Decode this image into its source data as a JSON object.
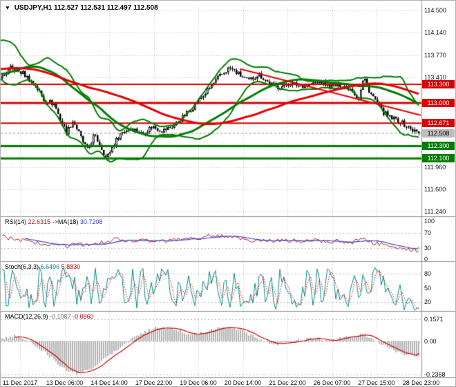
{
  "header": {
    "dropdown_icon": "▼",
    "symbol": "USDJPY,H1",
    "quote": "112.527 112.531 112.497 112.508"
  },
  "colors": {
    "up_candle": "#ffffff",
    "down_candle": "#000000",
    "candle_border": "#000000",
    "grid": "#c9c9c9",
    "panel_level": "#b4b4b4",
    "separator": "#8f8f8f",
    "bollinger": "#007d00",
    "ma_green": "#007d00",
    "ma_red": "#e40000",
    "rsi": "#b22222",
    "rsi_ma": "#3c3cc8",
    "stoch": "#008b8b",
    "stoch_signal": "#cc0000",
    "macd_hist": "#9a9a9a",
    "macd_signal": "#cc0000"
  },
  "chart_data": [
    {
      "type": "candlestick",
      "symbol": "USDJPY",
      "period": "H1",
      "title": "USDJPY,H1 112.527 112.531 112.497 112.508",
      "ylim": [
        111.24,
        114.59
      ],
      "candles": 202,
      "warmup": 90,
      "volatility": 0.045,
      "y_ticks": [
        {
          "label": "114.500",
          "price": 114.5
        },
        {
          "label": "114.140",
          "price": 114.14
        },
        {
          "label": "113.770",
          "price": 113.77
        },
        {
          "label": "113.410",
          "price": 113.41
        },
        {
          "label": "111.960",
          "price": 111.96
        },
        {
          "label": "111.600",
          "price": 111.6
        },
        {
          "label": "111.240",
          "price": 111.24
        }
      ],
      "grid_prices": [
        114.5,
        114.14,
        113.77,
        113.41,
        113.05,
        112.69,
        112.33,
        111.96,
        111.6,
        111.24
      ],
      "x_labels": [
        "11 Dec 2017",
        "13 Dec 06:00",
        "14 Dec 14:00",
        "17 Dec 22:00",
        "19 Dec 06:00",
        "20 Dec 14:00",
        "21 Dec 22:00",
        "26 Dec 07:00",
        "27 Dec 15:00",
        "28 Dec 23:00"
      ],
      "levels": [
        {
          "price": 113.3,
          "label": "113.300",
          "color": "#d80000",
          "width": 2
        },
        {
          "price": 113.0,
          "label": "113.000",
          "color": "#d80000",
          "width": 3
        },
        {
          "price": 112.671,
          "label": "112.671",
          "color": "#d80000",
          "width": 2
        },
        {
          "price": 112.3,
          "label": "112.300",
          "color": "#007d00",
          "width": 3
        },
        {
          "price": 112.1,
          "label": "112.100",
          "color": "#007d00",
          "width": 3
        }
      ],
      "current_price": {
        "price": 112.508,
        "label": "112.508",
        "tag_bg": "#bdbdbd",
        "tag_text": "#000000"
      },
      "price_path": [
        [
          -0.45,
          112.95
        ],
        [
          -0.38,
          113.55
        ],
        [
          -0.3,
          114.0
        ],
        [
          -0.24,
          113.45
        ],
        [
          -0.18,
          112.95
        ],
        [
          -0.12,
          113.6
        ],
        [
          -0.06,
          113.9
        ],
        [
          -0.02,
          113.5
        ],
        [
          0.0,
          113.42
        ],
        [
          0.02,
          113.56
        ],
        [
          0.05,
          113.48
        ],
        [
          0.08,
          113.28
        ],
        [
          0.1,
          113.05
        ],
        [
          0.125,
          112.98
        ],
        [
          0.14,
          112.72
        ],
        [
          0.155,
          112.52
        ],
        [
          0.17,
          112.72
        ],
        [
          0.19,
          112.42
        ],
        [
          0.205,
          112.22
        ],
        [
          0.22,
          112.48
        ],
        [
          0.235,
          112.32
        ],
        [
          0.25,
          112.1
        ],
        [
          0.265,
          112.3
        ],
        [
          0.285,
          112.52
        ],
        [
          0.31,
          112.6
        ],
        [
          0.335,
          112.5
        ],
        [
          0.36,
          112.62
        ],
        [
          0.385,
          112.55
        ],
        [
          0.41,
          112.62
        ],
        [
          0.435,
          112.78
        ],
        [
          0.46,
          112.95
        ],
        [
          0.49,
          113.18
        ],
        [
          0.52,
          113.42
        ],
        [
          0.545,
          113.57
        ],
        [
          0.565,
          113.48
        ],
        [
          0.59,
          113.35
        ],
        [
          0.615,
          113.47
        ],
        [
          0.64,
          113.32
        ],
        [
          0.665,
          113.25
        ],
        [
          0.69,
          113.32
        ],
        [
          0.715,
          113.28
        ],
        [
          0.74,
          113.3
        ],
        [
          0.765,
          113.34
        ],
        [
          0.79,
          113.26
        ],
        [
          0.815,
          113.3
        ],
        [
          0.84,
          113.22
        ],
        [
          0.855,
          113.05
        ],
        [
          0.868,
          113.42
        ],
        [
          0.882,
          113.18
        ],
        [
          0.895,
          113.05
        ],
        [
          0.91,
          112.88
        ],
        [
          0.93,
          112.76
        ],
        [
          0.95,
          112.72
        ],
        [
          0.97,
          112.62
        ],
        [
          0.985,
          112.56
        ],
        [
          1.0,
          112.51
        ]
      ],
      "overlays": {
        "bollinger": {
          "period": 20,
          "stddev": 2.0,
          "color": "#007d00",
          "width": 2
        },
        "ma_green": {
          "period": 45,
          "color": "#007d00",
          "width": 3
        },
        "ma_red": {
          "period": 85,
          "color": "#e40000",
          "width": 3
        },
        "trendline": {
          "from": [
            0.57,
            113.55
          ],
          "to": [
            1.0,
            112.8
          ],
          "color": "#e40000",
          "width": 2
        }
      }
    },
    {
      "type": "line",
      "name": "RSI",
      "label": {
        "name": "RSI(14)",
        "v1": "22.6315",
        "mid": "->MA(18)",
        "v2": "30.7208"
      },
      "range": [
        0,
        100
      ],
      "ticks": [
        {
          "label": "100",
          "value": 100
        },
        {
          "label": "70",
          "value": 70
        },
        {
          "label": "30",
          "value": 30
        },
        {
          "label": "0",
          "value": 0
        }
      ],
      "levels": [
        70,
        30
      ],
      "noise": 6,
      "anchors": [
        [
          0,
          60
        ],
        [
          0.03,
          52
        ],
        [
          0.06,
          48
        ],
        [
          0.09,
          42
        ],
        [
          0.12,
          38
        ],
        [
          0.15,
          35
        ],
        [
          0.18,
          40
        ],
        [
          0.21,
          36
        ],
        [
          0.24,
          44
        ],
        [
          0.27,
          50
        ],
        [
          0.3,
          52
        ],
        [
          0.33,
          48
        ],
        [
          0.36,
          50
        ],
        [
          0.39,
          46
        ],
        [
          0.42,
          52
        ],
        [
          0.45,
          56
        ],
        [
          0.48,
          58
        ],
        [
          0.51,
          60
        ],
        [
          0.54,
          62
        ],
        [
          0.57,
          55
        ],
        [
          0.6,
          50
        ],
        [
          0.63,
          52
        ],
        [
          0.66,
          48
        ],
        [
          0.69,
          50
        ],
        [
          0.72,
          46
        ],
        [
          0.75,
          50
        ],
        [
          0.78,
          44
        ],
        [
          0.81,
          48
        ],
        [
          0.84,
          45
        ],
        [
          0.87,
          50
        ],
        [
          0.9,
          40
        ],
        [
          0.93,
          35
        ],
        [
          0.96,
          30
        ],
        [
          1,
          22.6
        ]
      ],
      "last_values": {
        "rsi": 22.6315,
        "ma": 30.7208
      }
    },
    {
      "type": "line",
      "name": "Stochastic",
      "label": {
        "name": "Stoch(6,3,3)",
        "v1": "6.6496",
        "v2": "5.8830"
      },
      "range": [
        0,
        100
      ],
      "ticks": [
        {
          "label": "80",
          "value": 80
        },
        {
          "label": "50",
          "value": 50
        },
        {
          "label": "20",
          "value": 20
        }
      ],
      "levels": [
        80,
        20
      ],
      "chop_amplitude": 46,
      "anchors": [
        [
          0,
          50
        ],
        [
          0.92,
          50
        ],
        [
          0.96,
          26
        ],
        [
          1,
          6.6
        ]
      ],
      "last_values": {
        "main": 6.6496,
        "signal": 5.883
      }
    },
    {
      "type": "macd",
      "name": "MACD",
      "label": {
        "name": "MACD(12,26,9)",
        "v1": "-0.1087",
        "v2": "-0.0860"
      },
      "range": [
        -0.2368,
        0.1571
      ],
      "ticks": [
        {
          "label": "0.1571",
          "value": 0.1571
        },
        {
          "label": "0.00",
          "value": 0
        },
        {
          "label": "-0.2368",
          "value": -0.2368
        }
      ],
      "noise": 0.01,
      "anchors": [
        [
          0,
          0.02
        ],
        [
          0.03,
          0.04
        ],
        [
          0.06,
          0.0
        ],
        [
          0.09,
          -0.05
        ],
        [
          0.12,
          -0.12
        ],
        [
          0.15,
          -0.2
        ],
        [
          0.18,
          -0.235
        ],
        [
          0.21,
          -0.2
        ],
        [
          0.24,
          -0.14
        ],
        [
          0.27,
          -0.07
        ],
        [
          0.3,
          -0.01
        ],
        [
          0.33,
          0.05
        ],
        [
          0.36,
          0.09
        ],
        [
          0.39,
          0.1
        ],
        [
          0.42,
          0.08
        ],
        [
          0.45,
          0.05
        ],
        [
          0.48,
          0.06
        ],
        [
          0.51,
          0.09
        ],
        [
          0.54,
          0.11
        ],
        [
          0.57,
          0.08
        ],
        [
          0.6,
          0.04
        ],
        [
          0.63,
          0.0
        ],
        [
          0.66,
          -0.02
        ],
        [
          0.69,
          -0.01
        ],
        [
          0.72,
          0.01
        ],
        [
          0.75,
          0.02
        ],
        [
          0.78,
          0.0
        ],
        [
          0.81,
          0.02
        ],
        [
          0.84,
          0.04
        ],
        [
          0.87,
          0.05
        ],
        [
          0.9,
          0.0
        ],
        [
          0.93,
          -0.05
        ],
        [
          0.96,
          -0.09
        ],
        [
          1,
          -0.109
        ]
      ],
      "last_values": {
        "macd": -0.1087,
        "signal": -0.086
      }
    }
  ]
}
